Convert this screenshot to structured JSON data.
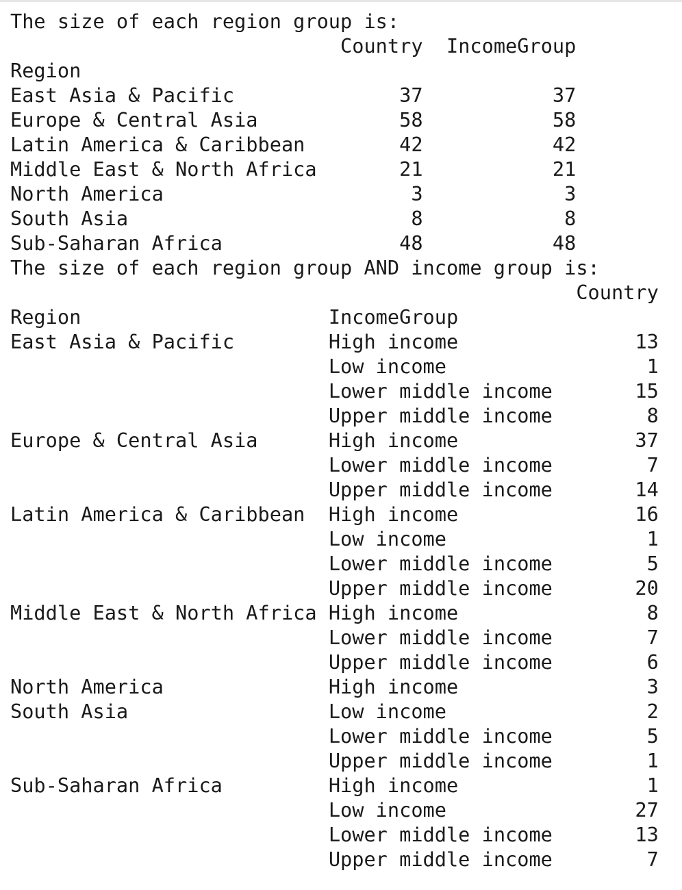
{
  "header1": "The size of each region group is:",
  "table1": {
    "columns": [
      "Country",
      "IncomeGroup"
    ],
    "index_name": "Region",
    "rows": [
      {
        "region": "East Asia & Pacific",
        "country": "37",
        "income_group": "37"
      },
      {
        "region": "Europe & Central Asia",
        "country": "58",
        "income_group": "58"
      },
      {
        "region": "Latin America & Caribbean",
        "country": "42",
        "income_group": "42"
      },
      {
        "region": "Middle East & North Africa",
        "country": "21",
        "income_group": "21"
      },
      {
        "region": "North America",
        "country": "3",
        "income_group": "3"
      },
      {
        "region": "South Asia",
        "country": "8",
        "income_group": "8"
      },
      {
        "region": "Sub-Saharan Africa",
        "country": "48",
        "income_group": "48"
      }
    ]
  },
  "header2": "The size of each region group AND income group is:",
  "table2": {
    "column": "Country",
    "index_names": [
      "Region",
      "IncomeGroup"
    ],
    "rows": [
      {
        "region": "East Asia & Pacific",
        "income_group": "High income",
        "country": "13"
      },
      {
        "region": "",
        "income_group": "Low income",
        "country": "1"
      },
      {
        "region": "",
        "income_group": "Lower middle income",
        "country": "15"
      },
      {
        "region": "",
        "income_group": "Upper middle income",
        "country": "8"
      },
      {
        "region": "Europe & Central Asia",
        "income_group": "High income",
        "country": "37"
      },
      {
        "region": "",
        "income_group": "Lower middle income",
        "country": "7"
      },
      {
        "region": "",
        "income_group": "Upper middle income",
        "country": "14"
      },
      {
        "region": "Latin America & Caribbean",
        "income_group": "High income",
        "country": "16"
      },
      {
        "region": "",
        "income_group": "Low income",
        "country": "1"
      },
      {
        "region": "",
        "income_group": "Lower middle income",
        "country": "5"
      },
      {
        "region": "",
        "income_group": "Upper middle income",
        "country": "20"
      },
      {
        "region": "Middle East & North Africa",
        "income_group": "High income",
        "country": "8"
      },
      {
        "region": "",
        "income_group": "Lower middle income",
        "country": "7"
      },
      {
        "region": "",
        "income_group": "Upper middle income",
        "country": "6"
      },
      {
        "region": "North America",
        "income_group": "High income",
        "country": "3"
      },
      {
        "region": "South Asia",
        "income_group": "Low income",
        "country": "2"
      },
      {
        "region": "",
        "income_group": "Lower middle income",
        "country": "5"
      },
      {
        "region": "",
        "income_group": "Upper middle income",
        "country": "1"
      },
      {
        "region": "Sub-Saharan Africa",
        "income_group": "High income",
        "country": "1"
      },
      {
        "region": "",
        "income_group": "Low income",
        "country": "27"
      },
      {
        "region": "",
        "income_group": "Lower middle income",
        "country": "13"
      },
      {
        "region": "",
        "income_group": "Upper middle income",
        "country": "7"
      }
    ]
  }
}
